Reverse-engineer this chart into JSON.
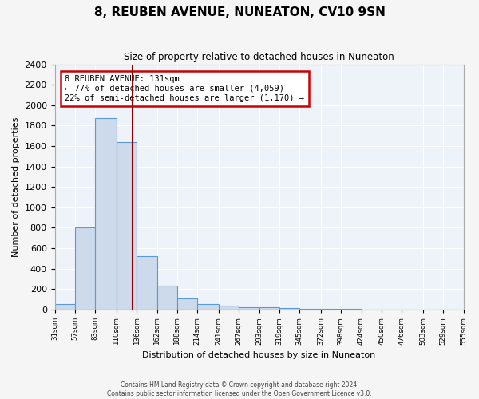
{
  "title": "8, REUBEN AVENUE, NUNEATON, CV10 9SN",
  "subtitle": "Size of property relative to detached houses in Nuneaton",
  "xlabel": "Distribution of detached houses by size in Nuneaton",
  "ylabel": "Number of detached properties",
  "annotation_title": "8 REUBEN AVENUE: 131sqm",
  "annotation_line1": "← 77% of detached houses are smaller (4,059)",
  "annotation_line2": "22% of semi-detached houses are larger (1,170) →",
  "property_sqm": 131,
  "bar_edges": [
    31,
    57,
    83,
    110,
    136,
    162,
    188,
    214,
    241,
    267,
    293,
    319,
    345,
    372,
    398,
    424,
    450,
    476,
    503,
    529,
    555
  ],
  "bar_heights": [
    50,
    800,
    1870,
    1640,
    520,
    235,
    110,
    50,
    40,
    25,
    20,
    10,
    8,
    5,
    3,
    2,
    1,
    1,
    1,
    1
  ],
  "tick_labels": [
    "31sqm",
    "57sqm",
    "83sqm",
    "110sqm",
    "136sqm",
    "162sqm",
    "188sqm",
    "214sqm",
    "241sqm",
    "267sqm",
    "293sqm",
    "319sqm",
    "345sqm",
    "372sqm",
    "398sqm",
    "424sqm",
    "450sqm",
    "476sqm",
    "503sqm",
    "529sqm",
    "555sqm"
  ],
  "bar_color": "#ccdaeb",
  "bar_edge_color": "#5b9bd5",
  "vline_color": "#8b0000",
  "annotation_box_edge_color": "#cc0000",
  "background_color": "#eef2f9",
  "grid_color": "#ffffff",
  "ylim": [
    0,
    2400
  ],
  "yticks": [
    0,
    200,
    400,
    600,
    800,
    1000,
    1200,
    1400,
    1600,
    1800,
    2000,
    2200,
    2400
  ],
  "footer1": "Contains HM Land Registry data © Crown copyright and database right 2024.",
  "footer2": "Contains public sector information licensed under the Open Government Licence v3.0."
}
